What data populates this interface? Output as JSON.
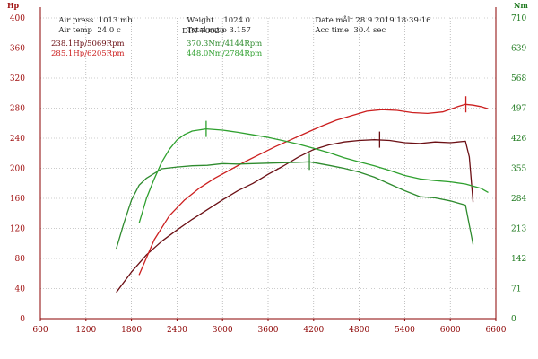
{
  "header": {
    "air_press_label": "Air press",
    "air_press_value": "1013 mb",
    "air_temp_label": "Air temp",
    "air_temp_value": "24.0 c",
    "weight_label": "Weight",
    "weight_value": "1024.0",
    "ratio_label": "Total ratio",
    "ratio_value": "3.157",
    "din": "DIN 70020",
    "date_label": "Date målt",
    "date_value": "28.9.2019 18:39:16",
    "acc_label": "Acc time",
    "acc_value": "30.4 sec"
  },
  "legend": {
    "hp_dark": "238.1Hp/5069Rpm",
    "hp_red": "285.1Hp/6205Rpm",
    "nm_dark": "370.3Nm/4144Rpm",
    "nm_light": "448.0Nm/2784Rpm"
  },
  "colors": {
    "axis": "#8b0000",
    "left_ticks": "#a01010",
    "right_ticks": "#1f7a1f",
    "dark_red": "#6b0f14",
    "red": "#cc1f1f",
    "dark_green": "#2e8b2e",
    "green": "#2ea02e"
  },
  "chart_data": {
    "type": "line",
    "ylabel": "Hp",
    "ylabel_right": "Nm",
    "xlim": [
      600,
      6600
    ],
    "ylim": [
      0,
      400
    ],
    "ylim_right": [
      0,
      710
    ],
    "x_ticks": [
      "600",
      "1200",
      "1800",
      "2400",
      "3000",
      "3600",
      "4200",
      "4800",
      "5400",
      "6000",
      "6600"
    ],
    "y_ticks": [
      "0",
      "40",
      "80",
      "120",
      "160",
      "200",
      "240",
      "280",
      "320",
      "360",
      "400"
    ],
    "y_ticks_right": [
      "0",
      "71",
      "142",
      "213",
      "284",
      "355",
      "426",
      "497",
      "568",
      "639",
      "710"
    ],
    "series": [
      {
        "name": "238.1Hp/5069Rpm",
        "axis": "left",
        "color_key": "dark_red",
        "x": [
          1600,
          1800,
          2000,
          2200,
          2400,
          2600,
          2800,
          3000,
          3200,
          3400,
          3600,
          3800,
          4000,
          4200,
          4400,
          4600,
          4800,
          5000,
          5200,
          5400,
          5600,
          5800,
          6000,
          6200,
          6250,
          6300
        ],
        "y": [
          35,
          62,
          85,
          103,
          118,
          132,
          145,
          158,
          170,
          180,
          192,
          203,
          215,
          225,
          231,
          235,
          237,
          238,
          237,
          234,
          233,
          235,
          234,
          236,
          215,
          155
        ],
        "peak": {
          "x": 5069,
          "y": 238.1
        }
      },
      {
        "name": "285.1Hp/6205Rpm",
        "axis": "left",
        "color_key": "red",
        "x": [
          1900,
          2100,
          2300,
          2500,
          2700,
          2900,
          3100,
          3300,
          3500,
          3700,
          3900,
          4100,
          4300,
          4500,
          4700,
          4900,
          5100,
          5300,
          5500,
          5700,
          5900,
          6100,
          6200,
          6300,
          6400,
          6500
        ],
        "y": [
          58,
          105,
          137,
          158,
          174,
          187,
          198,
          209,
          219,
          229,
          238,
          247,
          256,
          264,
          270,
          276,
          278,
          277,
          274,
          273,
          275,
          282,
          285,
          284,
          282,
          279
        ],
        "peak": {
          "x": 6205,
          "y": 285.1
        }
      },
      {
        "name": "370.3Nm/4144Rpm",
        "axis": "right",
        "color_key": "dark_green",
        "x": [
          1600,
          1700,
          1800,
          1900,
          2000,
          2200,
          2400,
          2600,
          2800,
          3000,
          3200,
          3400,
          3600,
          3800,
          4000,
          4144,
          4400,
          4600,
          4800,
          5000,
          5200,
          5400,
          5600,
          5800,
          6000,
          6200,
          6300
        ],
        "y": [
          165,
          225,
          280,
          315,
          332,
          354,
          358,
          361,
          362,
          366,
          365,
          366,
          367,
          368,
          369,
          370.3,
          362,
          355,
          346,
          334,
          318,
          302,
          288,
          285,
          278,
          268,
          175
        ],
        "peak": {
          "x": 4144,
          "y": 370.3
        }
      },
      {
        "name": "448.0Nm/2784Rpm",
        "axis": "right",
        "color_key": "green",
        "x": [
          1900,
          2000,
          2100,
          2200,
          2300,
          2400,
          2500,
          2600,
          2784,
          3000,
          3200,
          3400,
          3600,
          3800,
          4000,
          4200,
          4400,
          4600,
          4800,
          5000,
          5200,
          5400,
          5600,
          5800,
          6000,
          6200,
          6400,
          6500
        ],
        "y": [
          225,
          285,
          330,
          370,
          400,
          422,
          435,
          443,
          448,
          445,
          440,
          434,
          428,
          420,
          412,
          402,
          392,
          380,
          370,
          361,
          350,
          338,
          330,
          326,
          323,
          318,
          308,
          298
        ],
        "peak": {
          "x": 2784,
          "y": 448.0
        }
      }
    ]
  }
}
